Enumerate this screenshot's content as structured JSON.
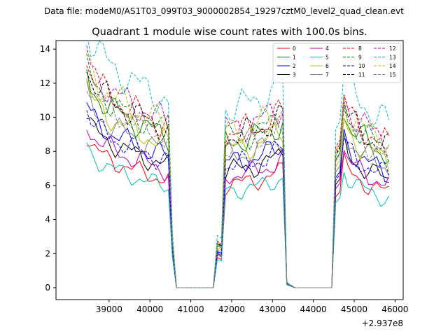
{
  "chart_data": {
    "type": "line",
    "suptitle": "Data file: modeM0/AS1T03_099T03_9000002854_19297cztM0_level2_quad_clean.evt",
    "title": "Quadrant 1 module wise count rates with 100.0s bins.",
    "xlabel": "",
    "ylabel": "",
    "x_offset_label": "+2.937e8",
    "xlim": [
      37700,
      46200
    ],
    "ylim": [
      -0.7,
      14.5
    ],
    "xticks": [
      39000,
      40000,
      41000,
      42000,
      43000,
      44000,
      45000,
      46000
    ],
    "yticks": [
      0,
      2,
      4,
      6,
      8,
      10,
      12,
      14
    ],
    "legend_position": "top-right",
    "series": [
      {
        "name": "0",
        "color": "#ff0000",
        "dash": "solid",
        "base": 6.6,
        "p": 0.3
      },
      {
        "name": "1",
        "color": "#008000",
        "dash": "solid",
        "base": 9.3,
        "p": 1.1
      },
      {
        "name": "2",
        "color": "#0000ff",
        "dash": "solid",
        "base": 8.0,
        "p": 2.3
      },
      {
        "name": "3",
        "color": "#000000",
        "dash": "solid",
        "base": 7.5,
        "p": 3.7
      },
      {
        "name": "4",
        "color": "#bf00bf",
        "dash": "solid",
        "base": 7.2,
        "p": 4.6
      },
      {
        "name": "5",
        "color": "#00bfbf",
        "dash": "solid",
        "base": 6.2,
        "p": 5.9
      },
      {
        "name": "6",
        "color": "#bfbf00",
        "dash": "solid",
        "base": 8.8,
        "p": 0.8
      },
      {
        "name": "7",
        "color": "#808080",
        "dash": "solid",
        "base": 8.4,
        "p": 2.9
      },
      {
        "name": "8",
        "color": "#ff0000",
        "dash": "dashed",
        "base": 9.9,
        "p": 1.7
      },
      {
        "name": "9",
        "color": "#008000",
        "dash": "dashed",
        "base": 9.6,
        "p": 4.1
      },
      {
        "name": "10",
        "color": "#0000ff",
        "dash": "dashed",
        "base": 7.8,
        "p": 5.2
      },
      {
        "name": "11",
        "color": "#000000",
        "dash": "dashed",
        "base": 9.7,
        "p": 0.5
      },
      {
        "name": "12",
        "color": "#bf00bf",
        "dash": "dashed",
        "base": 10.2,
        "p": 3.3
      },
      {
        "name": "13",
        "color": "#00bfbf",
        "dash": "dashed",
        "base": 11.5,
        "p": 2.0
      },
      {
        "name": "14",
        "color": "#bfbf00",
        "dash": "dashed",
        "base": 10.0,
        "p": 4.8
      },
      {
        "name": "15",
        "color": "#808080",
        "dash": "dashed",
        "base": 9.2,
        "p": 1.3
      }
    ],
    "segments": [
      {
        "start": 38450,
        "end": 40500,
        "shape": "decay",
        "s": 1.35,
        "e": 0.95
      },
      {
        "start": 41850,
        "end": 43300,
        "shape": "rise",
        "s": 0.92,
        "e": 1.05
      },
      {
        "start": 44750,
        "end": 45850,
        "shape": "decay",
        "s": 1.12,
        "e": 0.84
      }
    ],
    "gaps": [
      {
        "start": 40650,
        "end": 41550
      },
      {
        "start": 43550,
        "end": 44450
      }
    ],
    "bin_seconds": 100
  }
}
